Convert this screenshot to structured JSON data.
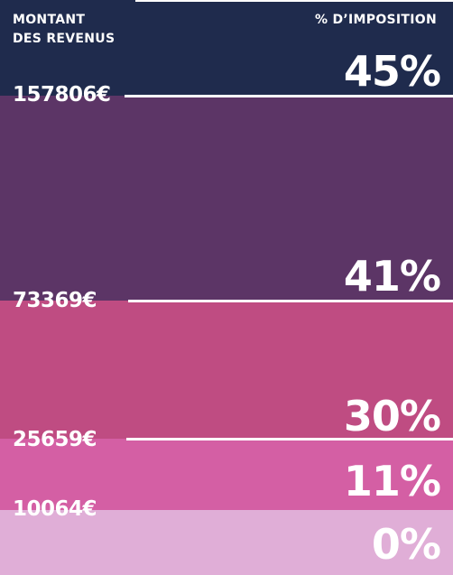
{
  "chart_data": {
    "type": "bar",
    "header_left": "MONTANT\nDES REVENUS",
    "header_right": "% D’IMPOSITION",
    "brackets": [
      {
        "threshold_label": "",
        "rate": 0,
        "rate_label": "0%",
        "color": "#e0aed7"
      },
      {
        "threshold_label": "10064€",
        "rate": 11,
        "rate_label": "11%",
        "color": "#d45fa4"
      },
      {
        "threshold_label": "25659€",
        "rate": 30,
        "rate_label": "30%",
        "color": "#bf4c82"
      },
      {
        "threshold_label": "73369€",
        "rate": 41,
        "rate_label": "41%",
        "color": "#5c3566"
      },
      {
        "threshold_label": "157806€",
        "rate": 45,
        "rate_label": "45%",
        "color": "#1f2b4d"
      }
    ],
    "line_color": "#ffffff"
  }
}
